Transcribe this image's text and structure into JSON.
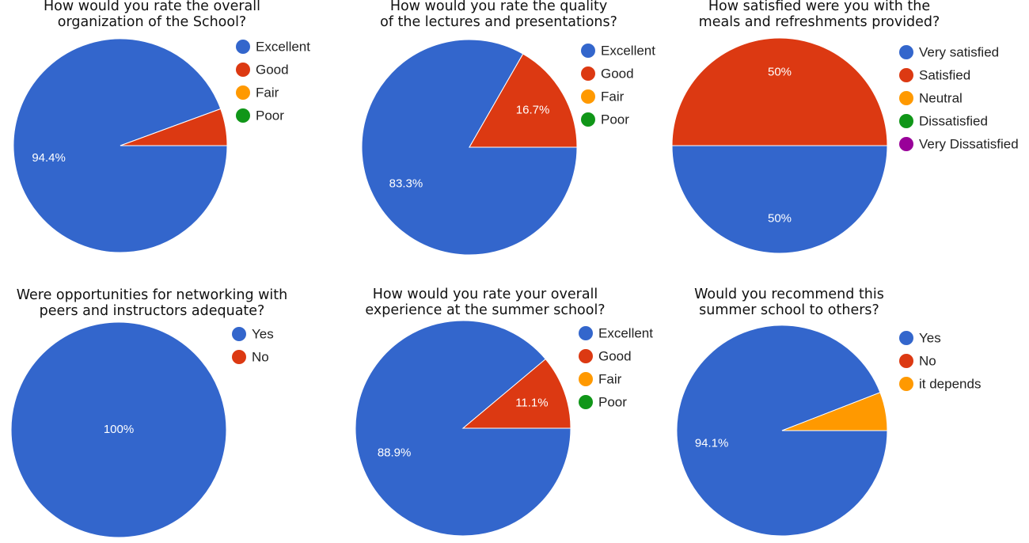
{
  "chart_data": [
    {
      "type": "pie",
      "title": "How would you rate the overall\norganization of the School?",
      "categories": [
        "Excellent",
        "Good",
        "Fair",
        "Poor"
      ],
      "values": [
        94.4,
        5.6,
        0,
        0
      ],
      "value_labels": [
        "94.4%",
        null,
        null,
        null
      ],
      "colors": [
        "#3366cc",
        "#dc3912",
        "#ff9900",
        "#109618"
      ]
    },
    {
      "type": "pie",
      "title": "How would you rate the quality\nof the lectures and presentations?",
      "categories": [
        "Excellent",
        "Good",
        "Fair",
        "Poor"
      ],
      "values": [
        83.3,
        16.7,
        0,
        0
      ],
      "value_labels": [
        "83.3%",
        "16.7%",
        null,
        null
      ],
      "colors": [
        "#3366cc",
        "#dc3912",
        "#ff9900",
        "#109618"
      ]
    },
    {
      "type": "pie",
      "title": "How satisfied were you with the\nmeals and refreshments provided?",
      "categories": [
        "Very satisfied",
        "Satisfied",
        "Neutral",
        "Dissatisfied",
        "Very Dissatisfied"
      ],
      "values": [
        50,
        50,
        0,
        0,
        0
      ],
      "value_labels": [
        "50%",
        "50%",
        null,
        null,
        null
      ],
      "colors": [
        "#3366cc",
        "#dc3912",
        "#ff9900",
        "#109618",
        "#990099"
      ]
    },
    {
      "type": "pie",
      "title": "Were opportunities for networking with\npeers and instructors adequate?",
      "categories": [
        "Yes",
        "No"
      ],
      "values": [
        100,
        0
      ],
      "value_labels": [
        "100%",
        null
      ],
      "colors": [
        "#3366cc",
        "#dc3912"
      ]
    },
    {
      "type": "pie",
      "title": "How would you rate your overall\nexperience at the summer school?",
      "categories": [
        "Excellent",
        "Good",
        "Fair",
        "Poor"
      ],
      "values": [
        88.9,
        11.1,
        0,
        0
      ],
      "value_labels": [
        "88.9%",
        "11.1%",
        null,
        null
      ],
      "colors": [
        "#3366cc",
        "#dc3912",
        "#ff9900",
        "#109618"
      ]
    },
    {
      "type": "pie",
      "title": "Would you recommend this\nsummer school to others?",
      "categories": [
        "Yes",
        "No",
        "it depends"
      ],
      "values": [
        94.1,
        0,
        5.9
      ],
      "value_labels": [
        "94.1%",
        null,
        null
      ],
      "colors": [
        "#3366cc",
        "#dc3912",
        "#ff9900"
      ]
    }
  ]
}
